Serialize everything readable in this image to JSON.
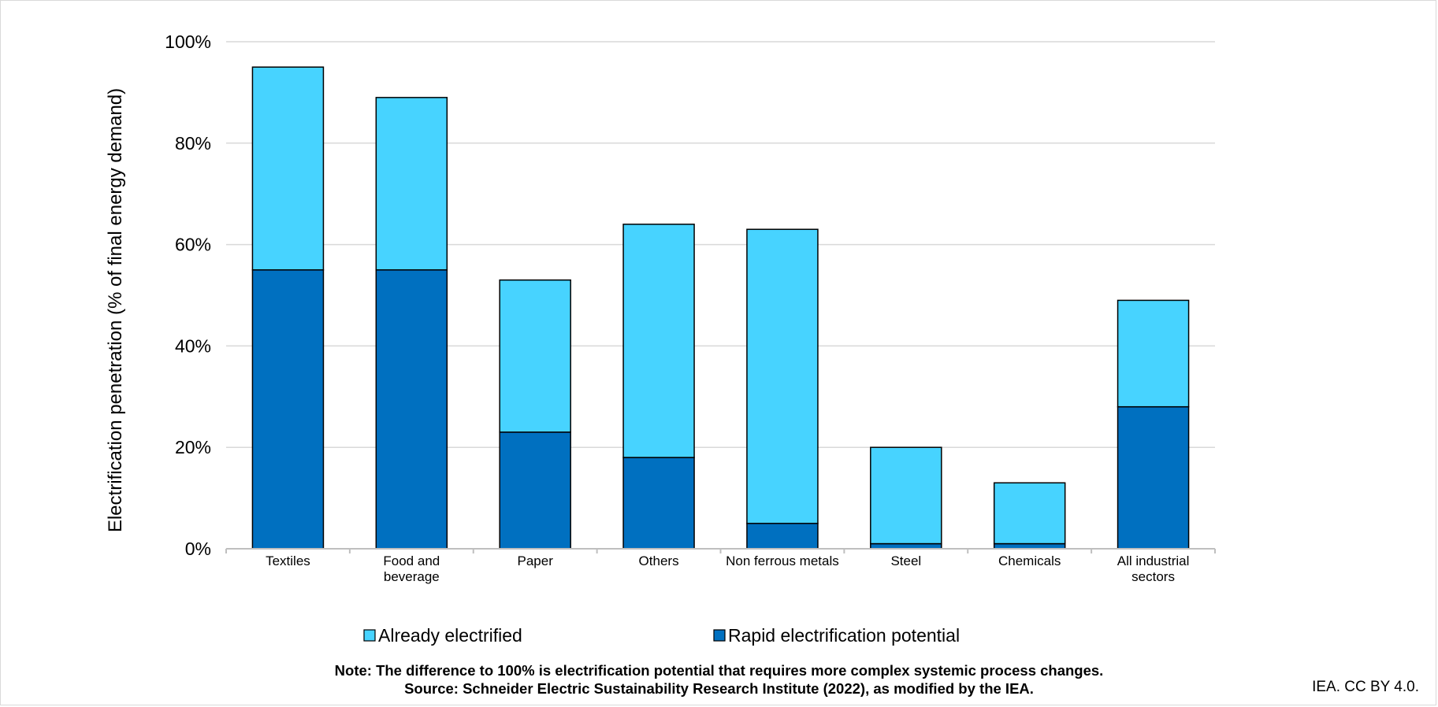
{
  "chart_data": {
    "type": "bar",
    "stacked": true,
    "categories": [
      "Textiles",
      "Food and beverage",
      "Paper",
      "Others",
      "Non ferrous metals",
      "Steel",
      "Chemicals",
      "All industrial sectors"
    ],
    "category_lines": [
      [
        "Textiles"
      ],
      [
        "Food and",
        "beverage"
      ],
      [
        "Paper"
      ],
      [
        "Others"
      ],
      [
        "Non ferrous metals"
      ],
      [
        "Steel"
      ],
      [
        "Chemicals"
      ],
      [
        "All industrial",
        "sectors"
      ]
    ],
    "series": [
      {
        "name": "Rapid electrification potential",
        "values": [
          55,
          55,
          23,
          18,
          5,
          1,
          1,
          28
        ],
        "color": "#0070c0"
      },
      {
        "name": "Already electrified",
        "values": [
          40,
          34,
          30,
          46,
          58,
          19,
          12,
          21
        ],
        "color": "#47d3ff"
      }
    ],
    "legend_order": [
      "Already electrified",
      "Rapid electrification potential"
    ],
    "legend_placement": "bottom",
    "ylabel": "Electrification penetration (% of final energy demand)",
    "ylim": [
      0,
      100
    ],
    "yticks": [
      0,
      20,
      40,
      60,
      80,
      100
    ],
    "ytick_labels": [
      "0%",
      "20%",
      "40%",
      "60%",
      "80%",
      "100%"
    ],
    "grid": true
  },
  "note": "Note: The difference to 100% is electrification potential that requires more complex systemic process changes.",
  "source": "Source: Schneider Electric Sustainability Research Institute (2022), as modified by the IEA.",
  "credit": "IEA. CC BY 4.0."
}
